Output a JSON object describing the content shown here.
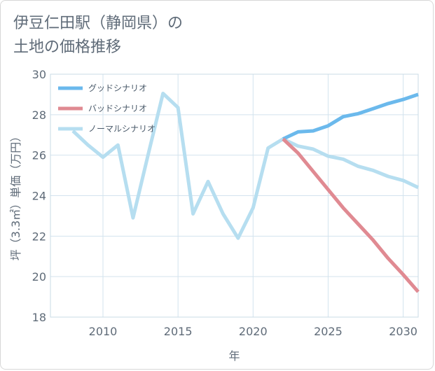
{
  "title_lines": [
    "伊豆仁田駅（静岡県）の",
    "土地の価格推移"
  ],
  "chart_data": {
    "type": "line",
    "xlabel": "年",
    "ylabel": "坪（3.3㎡）単価（万円）",
    "xlim": [
      2006.5,
      2031
    ],
    "ylim": [
      18,
      30
    ],
    "xticks": [
      2010,
      2015,
      2020,
      2025,
      2030
    ],
    "yticks": [
      18,
      20,
      22,
      24,
      26,
      28,
      30
    ],
    "grid": true,
    "legend_position": "top-left",
    "series": [
      {
        "name": "グッドシナリオ",
        "color": "#6bb9ec",
        "x": [
          2022,
          2023,
          2024,
          2025,
          2026,
          2027,
          2028,
          2029,
          2030,
          2031
        ],
        "y": [
          26.8,
          27.15,
          27.2,
          27.45,
          27.9,
          28.05,
          28.3,
          28.55,
          28.75,
          29.0
        ]
      },
      {
        "name": "バッドシナリオ",
        "color": "#e08a92",
        "x": [
          2022,
          2023,
          2024,
          2025,
          2026,
          2027,
          2028,
          2029,
          2030,
          2031
        ],
        "y": [
          26.8,
          26.1,
          25.2,
          24.3,
          23.4,
          22.6,
          21.8,
          20.9,
          20.1,
          19.25
        ]
      },
      {
        "name": "ノーマルシナリオ",
        "color": "#b6def0",
        "x": [
          2008,
          2009,
          2010,
          2011,
          2012,
          2013,
          2014,
          2015,
          2016,
          2017,
          2018,
          2019,
          2020,
          2021,
          2022,
          2023,
          2024,
          2025,
          2026,
          2027,
          2028,
          2029,
          2030,
          2031
        ],
        "y": [
          27.2,
          26.5,
          25.9,
          26.5,
          22.9,
          26.0,
          29.05,
          28.35,
          23.1,
          24.7,
          23.1,
          21.9,
          23.4,
          26.35,
          26.8,
          26.45,
          26.3,
          25.95,
          25.8,
          25.45,
          25.25,
          24.95,
          24.75,
          24.4
        ]
      }
    ]
  }
}
